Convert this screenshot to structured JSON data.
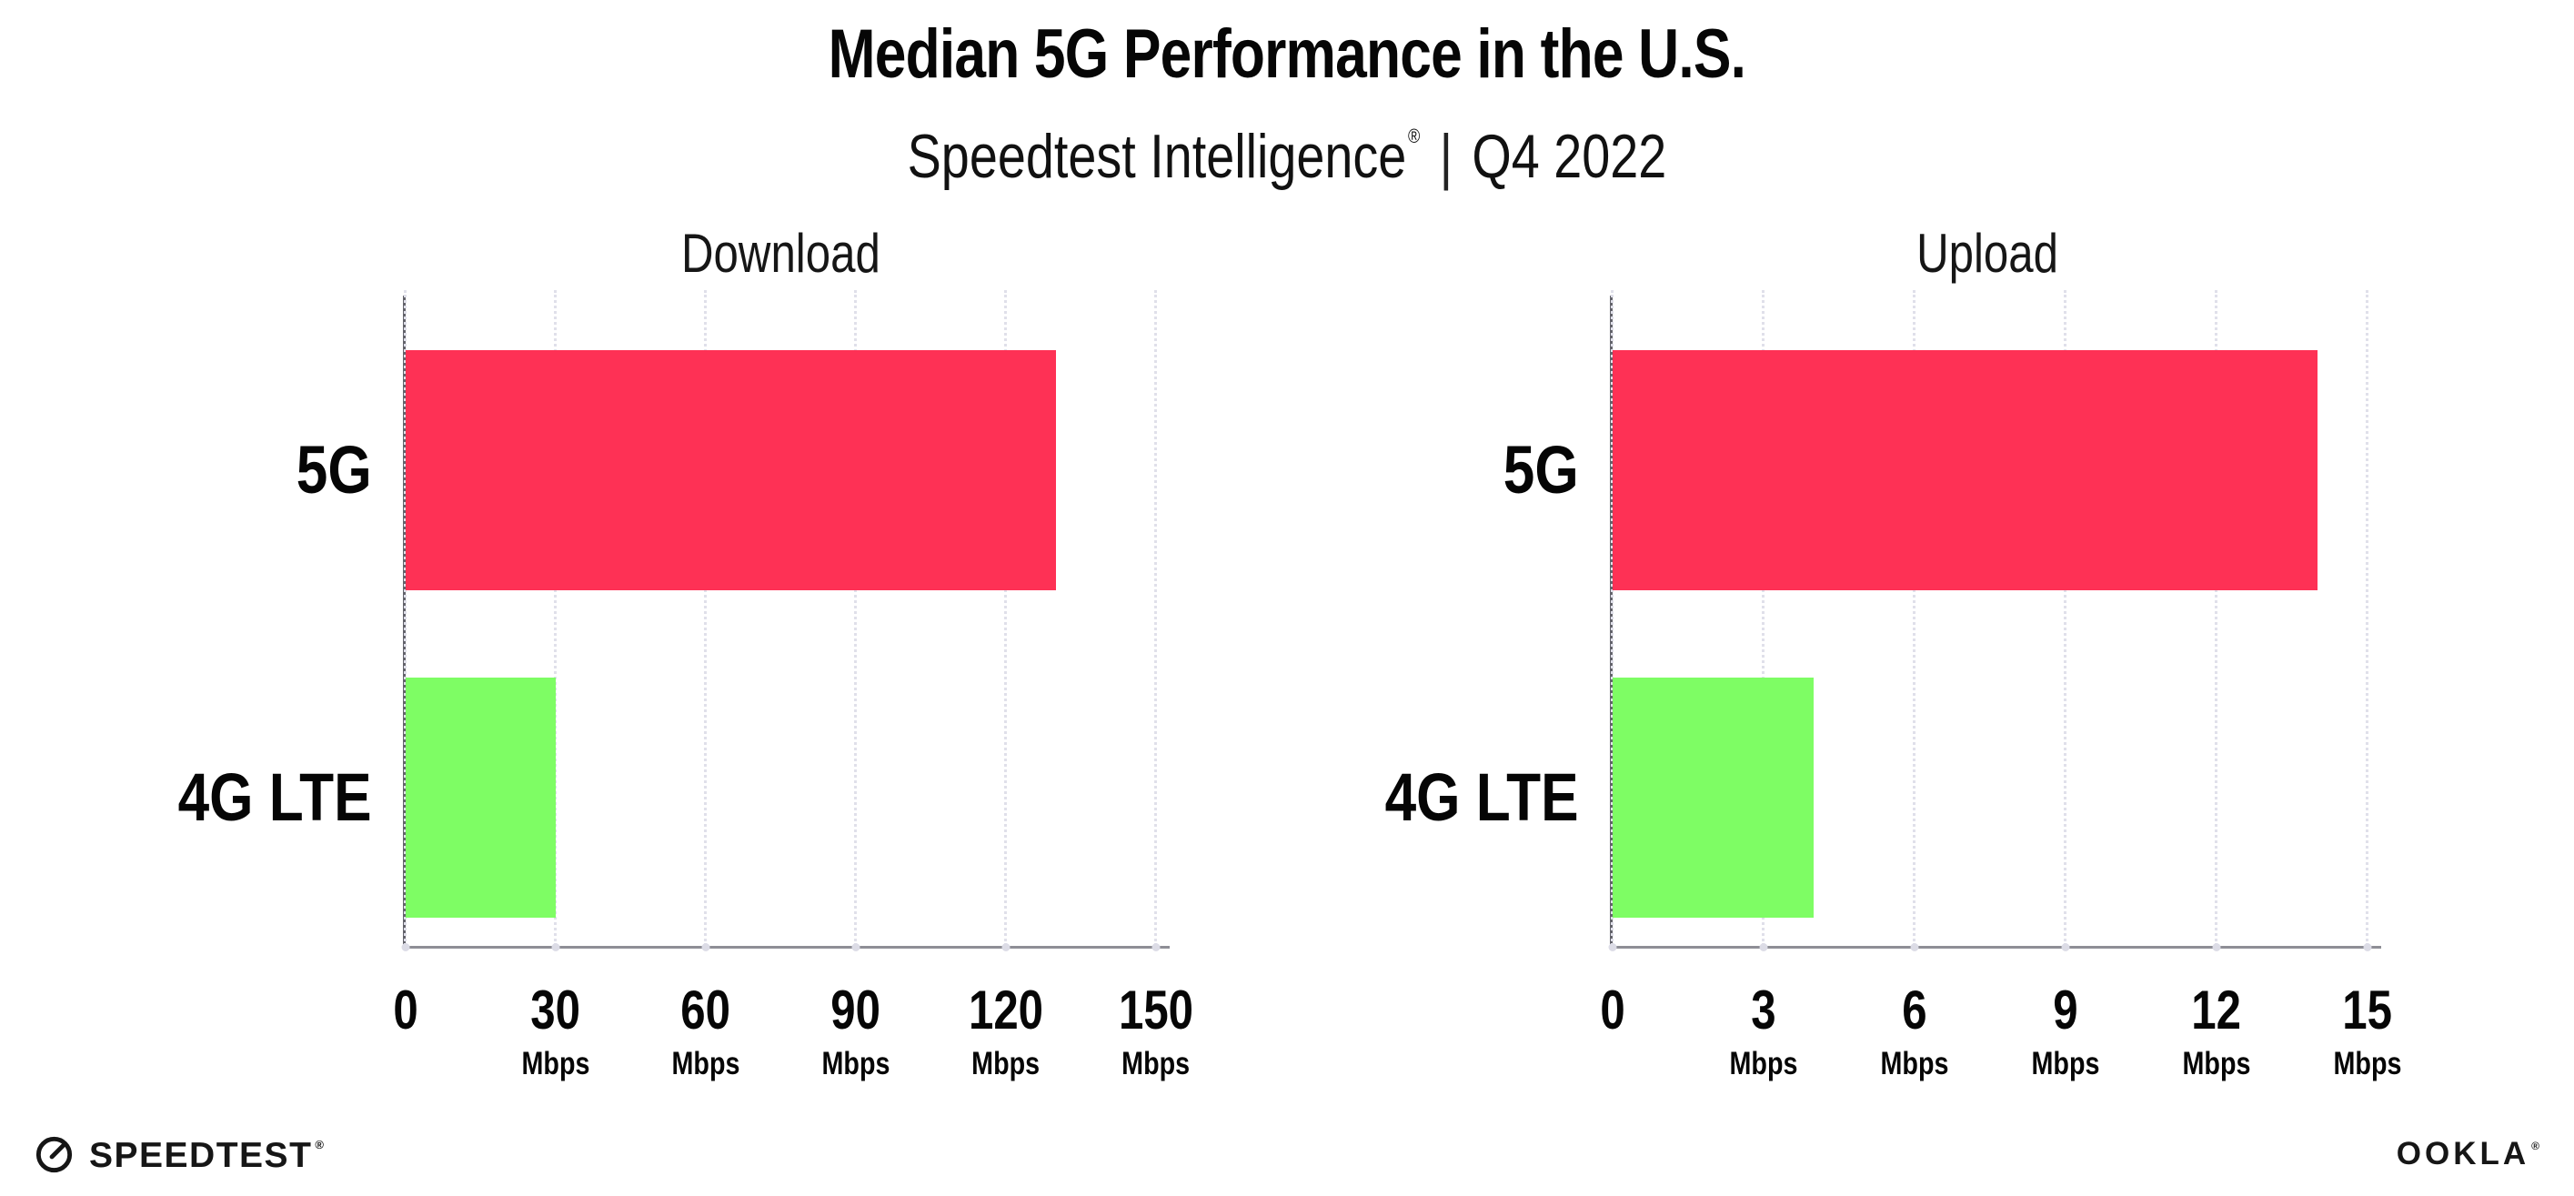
{
  "header": {
    "title": "Median 5G Performance in the U.S.",
    "subtitle": {
      "brand": "Speedtest Intelligence",
      "registered": "®",
      "separator": "|",
      "period": "Q4 2022"
    }
  },
  "chart_data": [
    {
      "type": "bar",
      "orientation": "horizontal",
      "title": "Download",
      "categories": [
        "5G",
        "4G LTE"
      ],
      "values": [
        130,
        30
      ],
      "unit": "Mbps",
      "xlim": [
        0,
        150
      ],
      "xticks": [
        0,
        30,
        60,
        90,
        120,
        150
      ],
      "bar_colors": [
        "#fe3155",
        "#7efd64"
      ],
      "grid": "vertical-dotted",
      "legend": "none"
    },
    {
      "type": "bar",
      "orientation": "horizontal",
      "title": "Upload",
      "categories": [
        "5G",
        "4G LTE"
      ],
      "values": [
        14,
        4
      ],
      "unit": "Mbps",
      "xlim": [
        0,
        15
      ],
      "xticks": [
        0,
        3,
        6,
        9,
        12,
        15
      ],
      "bar_colors": [
        "#fe3155",
        "#7efd64"
      ],
      "grid": "vertical-dotted",
      "legend": "none"
    }
  ],
  "colors": {
    "bar_5g": "#fe3155",
    "bar_4g": "#7efd64",
    "gridline": "#e0e0ea",
    "axis_line": "#8e8e96",
    "spine": "#63636b",
    "text": "#060606"
  },
  "footer": {
    "speedtest_label": "SPEEDTEST",
    "speedtest_mark": "®",
    "ookla_label": "OOKLA",
    "ookla_mark": "®"
  }
}
